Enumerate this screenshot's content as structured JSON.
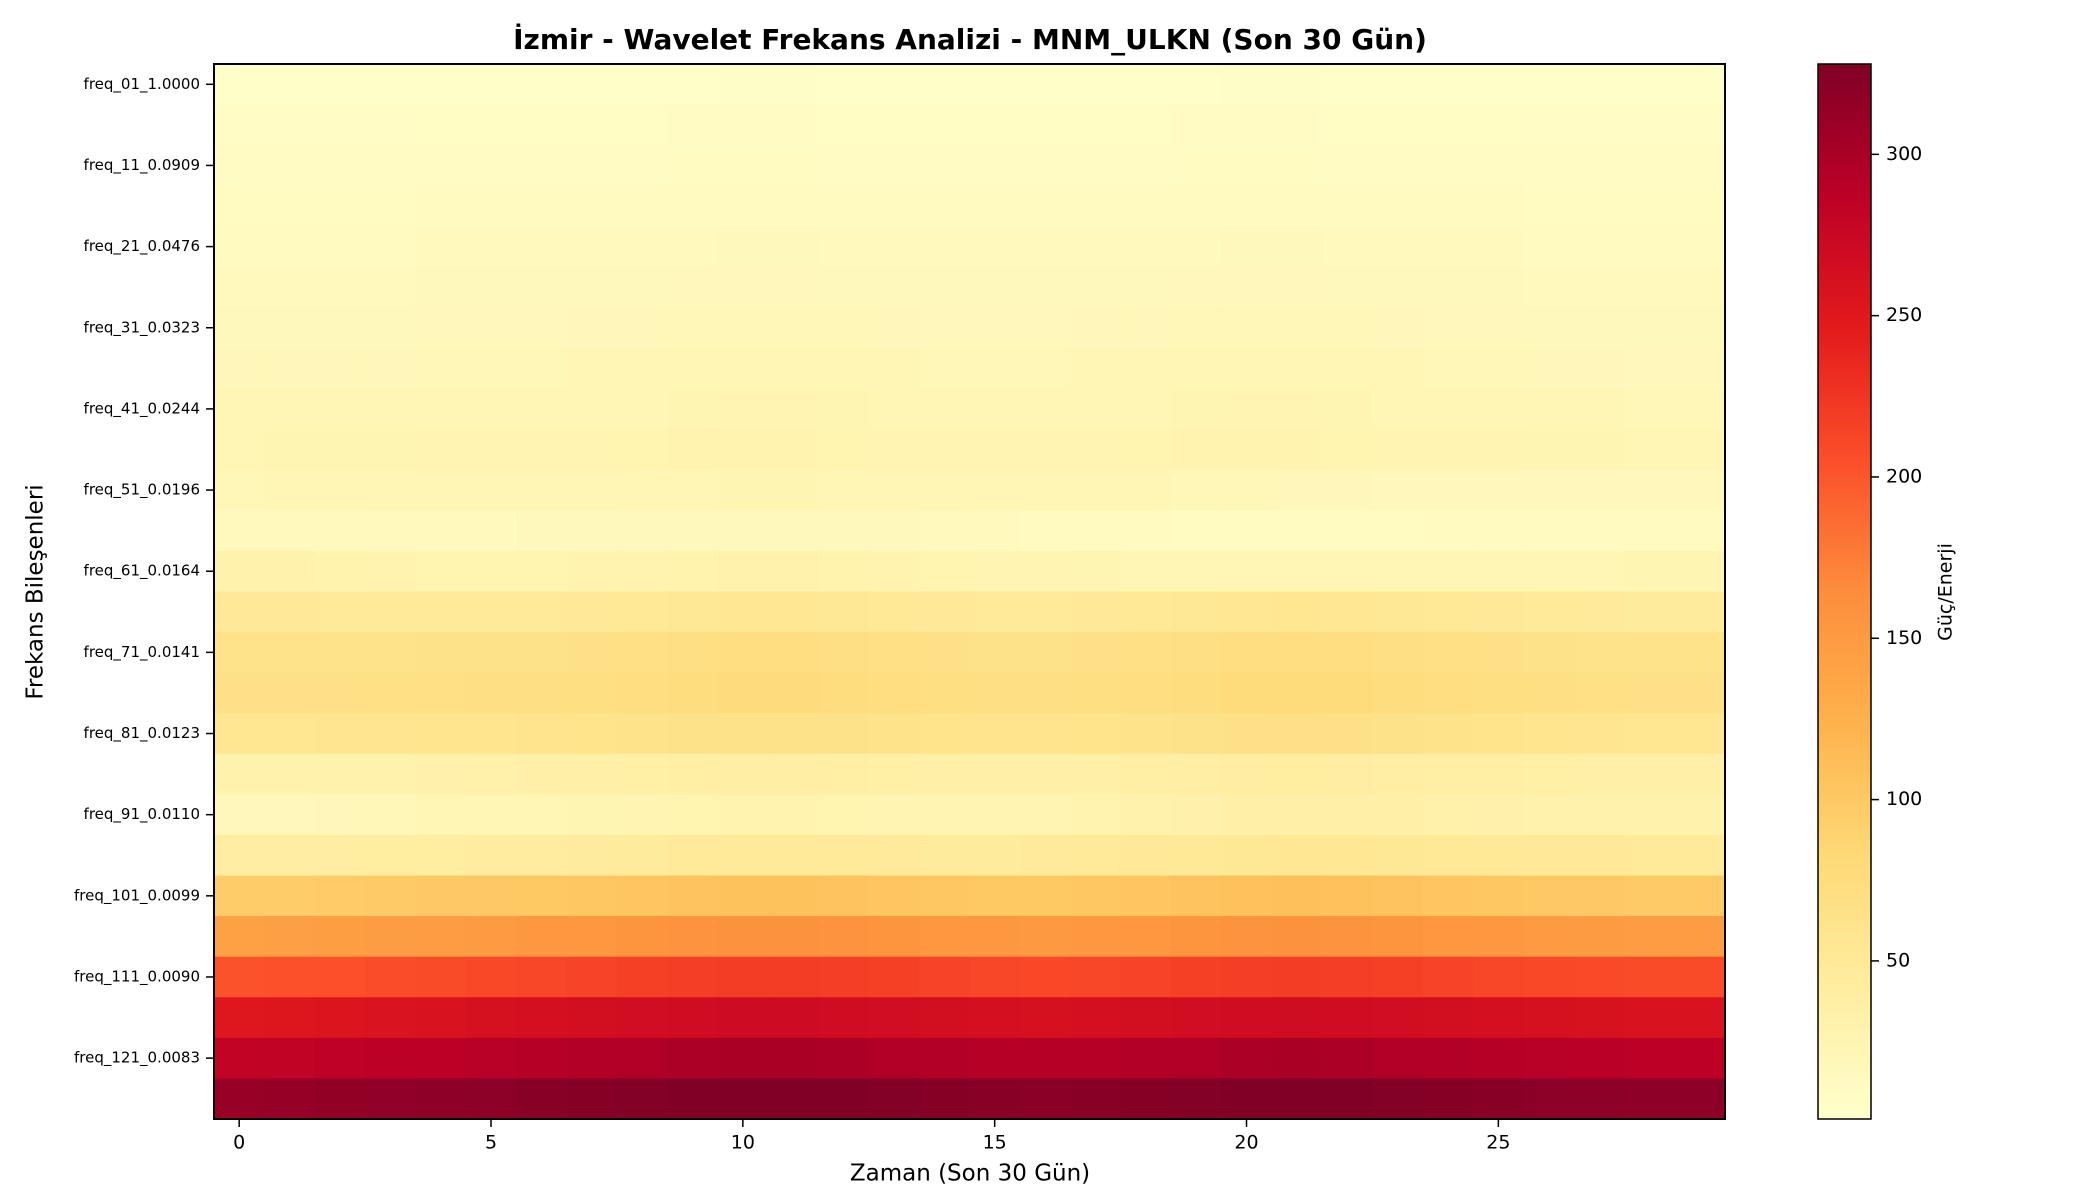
{
  "chart_data": {
    "type": "heatmap",
    "title": "İzmir - Wavelet Frekans Analizi - MNM_ULKN (Son 30 Gün)",
    "x_label": "Zaman (Son 30 Gün)",
    "y_label": "Frekans Bileşenleri",
    "colorbar_label": "Güç/Enerji",
    "x": [
      0,
      1,
      2,
      3,
      4,
      5,
      6,
      7,
      8,
      9,
      10,
      11,
      12,
      13,
      14,
      15,
      16,
      17,
      18,
      19,
      20,
      21,
      22,
      23,
      24,
      25,
      26,
      27,
      28,
      29
    ],
    "xlim": [
      -0.5,
      29.5
    ],
    "xticks": [
      0,
      5,
      10,
      15,
      20,
      25
    ],
    "categories": [
      "freq_01_1.0000",
      null,
      "freq_11_0.0909",
      null,
      "freq_21_0.0476",
      null,
      "freq_31_0.0323",
      null,
      "freq_41_0.0244",
      null,
      "freq_51_0.0196",
      null,
      "freq_61_0.0164",
      null,
      "freq_71_0.0141",
      null,
      "freq_81_0.0123",
      null,
      "freq_91_0.0110",
      null,
      "freq_101_0.0099",
      null,
      "freq_111_0.0090",
      null,
      "freq_121_0.0083",
      null
    ],
    "clim": [
      1,
      328
    ],
    "cticks": [
      50,
      100,
      150,
      200,
      250,
      300
    ],
    "colormap": [
      "#ffffcc",
      "#ffeda0",
      "#fed976",
      "#feb24c",
      "#fd8d3c",
      "#fc4e2a",
      "#e31a1c",
      "#bd0026",
      "#800026"
    ],
    "values": [
      [
        4,
        4,
        4,
        4,
        5,
        5,
        5,
        5,
        5,
        5,
        6,
        6,
        5,
        5,
        5,
        5,
        5,
        5,
        5,
        5,
        6,
        6,
        5,
        5,
        5,
        5,
        4,
        4,
        4,
        4
      ],
      [
        7,
        7,
        7,
        7,
        8,
        8,
        8,
        8,
        8,
        9,
        9,
        9,
        8,
        8,
        8,
        8,
        8,
        8,
        8,
        9,
        9,
        9,
        8,
        8,
        8,
        8,
        7,
        7,
        7,
        7
      ],
      [
        9,
        9,
        9,
        9,
        10,
        10,
        10,
        10,
        10,
        11,
        11,
        11,
        10,
        10,
        10,
        10,
        10,
        10,
        10,
        11,
        11,
        11,
        10,
        10,
        10,
        10,
        9,
        9,
        9,
        9
      ],
      [
        11,
        11,
        11,
        11,
        12,
        12,
        12,
        12,
        13,
        13,
        13,
        13,
        13,
        12,
        12,
        12,
        12,
        12,
        13,
        13,
        13,
        13,
        13,
        12,
        12,
        12,
        11,
        11,
        11,
        11
      ],
      [
        13,
        13,
        13,
        13,
        14,
        14,
        14,
        14,
        15,
        15,
        16,
        16,
        15,
        15,
        14,
        14,
        14,
        14,
        15,
        15,
        16,
        16,
        15,
        15,
        14,
        14,
        13,
        13,
        13,
        13
      ],
      [
        15,
        15,
        15,
        15,
        16,
        16,
        16,
        17,
        17,
        18,
        18,
        18,
        17,
        17,
        16,
        16,
        16,
        17,
        17,
        18,
        18,
        18,
        17,
        17,
        16,
        16,
        15,
        15,
        15,
        15
      ],
      [
        17,
        17,
        17,
        17,
        18,
        18,
        18,
        19,
        19,
        20,
        20,
        20,
        20,
        19,
        18,
        18,
        18,
        19,
        19,
        20,
        20,
        20,
        20,
        19,
        18,
        18,
        17,
        17,
        16,
        16
      ],
      [
        19,
        19,
        19,
        19,
        20,
        20,
        20,
        21,
        21,
        22,
        22,
        22,
        22,
        21,
        20,
        20,
        20,
        21,
        21,
        22,
        22,
        22,
        22,
        21,
        20,
        20,
        19,
        19,
        18,
        18
      ],
      [
        21,
        21,
        21,
        21,
        22,
        22,
        22,
        23,
        23,
        24,
        25,
        25,
        24,
        23,
        22,
        22,
        22,
        23,
        23,
        24,
        25,
        25,
        24,
        23,
        22,
        22,
        21,
        21,
        20,
        20
      ],
      [
        23,
        24,
        24,
        24,
        25,
        25,
        25,
        26,
        27,
        28,
        28,
        28,
        27,
        26,
        25,
        25,
        25,
        26,
        27,
        28,
        28,
        28,
        27,
        26,
        25,
        25,
        24,
        24,
        23,
        23
      ],
      [
        20,
        21,
        21,
        21,
        22,
        22,
        22,
        22,
        23,
        23,
        24,
        24,
        23,
        23,
        22,
        21,
        21,
        21,
        21,
        20,
        20,
        19,
        19,
        18,
        18,
        18,
        18,
        18,
        18,
        18
      ],
      [
        14,
        14,
        14,
        15,
        15,
        15,
        16,
        16,
        16,
        16,
        17,
        17,
        16,
        16,
        15,
        14,
        13,
        12,
        12,
        11,
        11,
        11,
        11,
        11,
        12,
        12,
        12,
        12,
        12,
        12
      ],
      [
        30,
        30,
        29,
        28,
        27,
        27,
        27,
        28,
        28,
        29,
        30,
        30,
        29,
        28,
        27,
        26,
        25,
        24,
        23,
        22,
        22,
        21,
        21,
        21,
        22,
        22,
        23,
        23,
        24,
        24
      ],
      [
        50,
        50,
        49,
        48,
        48,
        48,
        49,
        50,
        51,
        53,
        54,
        54,
        53,
        51,
        50,
        49,
        49,
        50,
        51,
        53,
        55,
        56,
        55,
        53,
        51,
        50,
        48,
        47,
        46,
        46
      ],
      [
        62,
        62,
        63,
        63,
        64,
        64,
        65,
        66,
        68,
        70,
        72,
        72,
        70,
        68,
        66,
        65,
        65,
        66,
        68,
        70,
        72,
        73,
        72,
        70,
        68,
        66,
        64,
        63,
        62,
        62
      ],
      [
        66,
        66,
        67,
        68,
        68,
        69,
        70,
        71,
        73,
        75,
        76,
        76,
        75,
        73,
        71,
        70,
        70,
        71,
        73,
        75,
        77,
        78,
        77,
        75,
        73,
        71,
        69,
        68,
        67,
        67
      ],
      [
        57,
        57,
        58,
        58,
        59,
        59,
        60,
        61,
        62,
        64,
        65,
        65,
        64,
        62,
        61,
        60,
        60,
        61,
        62,
        64,
        66,
        67,
        66,
        64,
        62,
        61,
        59,
        58,
        57,
        57
      ],
      [
        30,
        30,
        31,
        31,
        32,
        33,
        34,
        35,
        36,
        38,
        39,
        39,
        38,
        36,
        35,
        34,
        34,
        35,
        37,
        39,
        41,
        42,
        41,
        39,
        38,
        37,
        36,
        35,
        35,
        35
      ],
      [
        18,
        18,
        19,
        20,
        21,
        22,
        23,
        24,
        25,
        27,
        28,
        28,
        27,
        26,
        25,
        25,
        26,
        28,
        30,
        32,
        34,
        35,
        35,
        34,
        33,
        32,
        31,
        30,
        30,
        30
      ],
      [
        40,
        40,
        41,
        42,
        42,
        43,
        44,
        45,
        46,
        48,
        49,
        49,
        48,
        47,
        46,
        46,
        47,
        48,
        50,
        52,
        53,
        54,
        54,
        53,
        52,
        51,
        50,
        50,
        49,
        49
      ],
      [
        95,
        96,
        97,
        98,
        99,
        100,
        101,
        102,
        104,
        106,
        107,
        107,
        106,
        104,
        102,
        101,
        101,
        102,
        104,
        106,
        108,
        109,
        108,
        106,
        104,
        102,
        100,
        99,
        98,
        98
      ],
      [
        144,
        145,
        146,
        147,
        148,
        150,
        152,
        154,
        156,
        158,
        159,
        159,
        158,
        156,
        154,
        152,
        151,
        152,
        154,
        156,
        158,
        159,
        158,
        156,
        154,
        152,
        150,
        149,
        148,
        148
      ],
      [
        203,
        204,
        205,
        207,
        208,
        210,
        212,
        214,
        216,
        218,
        219,
        219,
        218,
        216,
        214,
        212,
        211,
        212,
        214,
        216,
        218,
        219,
        218,
        216,
        214,
        212,
        210,
        209,
        208,
        208
      ],
      [
        252,
        253,
        255,
        257,
        258,
        260,
        262,
        264,
        266,
        268,
        270,
        270,
        268,
        266,
        264,
        262,
        261,
        262,
        264,
        266,
        268,
        269,
        268,
        266,
        264,
        262,
        260,
        259,
        258,
        258
      ],
      [
        282,
        283,
        285,
        287,
        288,
        290,
        292,
        294,
        296,
        298,
        300,
        300,
        298,
        296,
        294,
        292,
        291,
        292,
        294,
        296,
        298,
        299,
        298,
        296,
        294,
        292,
        290,
        289,
        288,
        288
      ],
      [
        312,
        313,
        315,
        317,
        318,
        320,
        322,
        324,
        326,
        327,
        328,
        328,
        327,
        326,
        324,
        322,
        321,
        322,
        324,
        326,
        327,
        328,
        327,
        326,
        324,
        322,
        320,
        319,
        318,
        318
      ]
    ]
  }
}
